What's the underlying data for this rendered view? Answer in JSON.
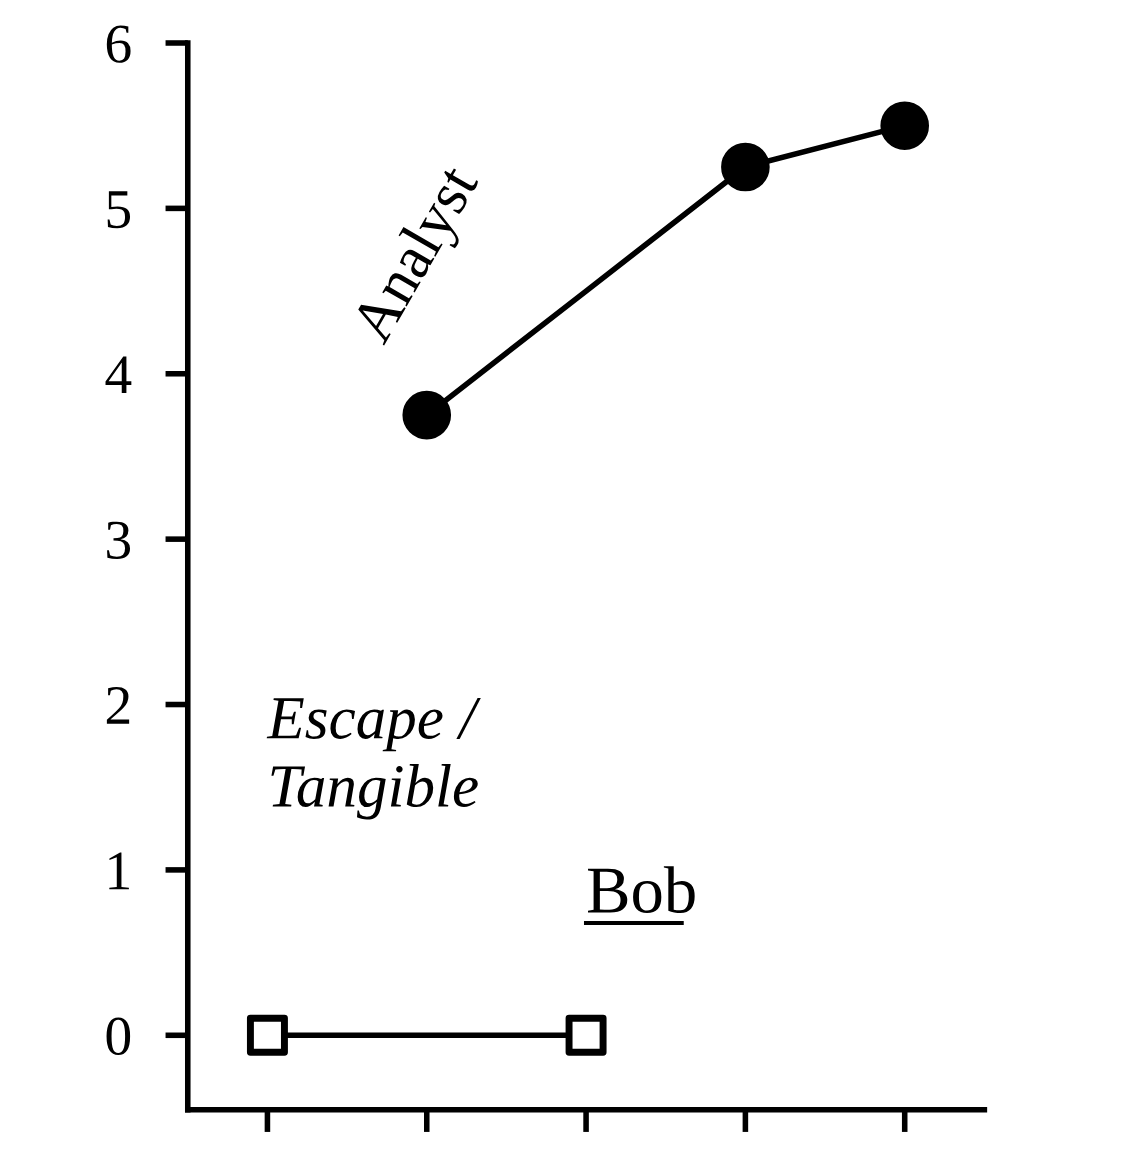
{
  "chart_data": {
    "type": "line",
    "title": "Bob",
    "categories": [
      null,
      null,
      null,
      null,
      null
    ],
    "series": [
      {
        "name": "Analyst",
        "color": "#000000",
        "values": [
          null,
          3.75,
          null,
          5.25,
          5.5
        ],
        "marker": "circle"
      },
      {
        "name": "Escape / Tangible",
        "color": "#000000",
        "values": [
          0,
          null,
          0,
          null,
          null
        ],
        "marker": "square"
      }
    ],
    "ylim": [
      -0.45,
      6
    ],
    "yticks": [
      0,
      1,
      2,
      3,
      4,
      5,
      6
    ],
    "line_style": "solid"
  }
}
